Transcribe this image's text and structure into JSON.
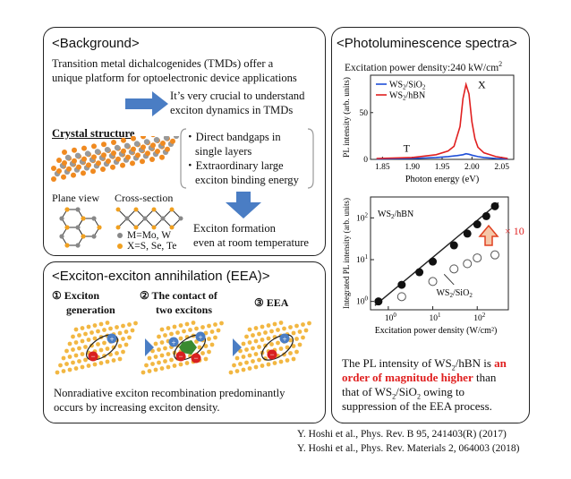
{
  "background": {
    "title": "<Background>",
    "intro_line1": "Transition metal dichalcogenides (TMDs) offer a",
    "intro_line2": "unique platform for optoelectronic device applications",
    "crucial_line1": "It’s very crucial to understand",
    "crucial_line2": "exciton dynamics in TMDs",
    "crystal_label": "Crystal structure",
    "bullet1_line1": "・Direct bandgaps in",
    "bullet1_line2": "single layers",
    "bullet2_line1": "・Extraordinary large",
    "bullet2_line2": "exciton binding energy",
    "plane_view": "Plane view",
    "cross_section": "Cross-section",
    "legend_m": "M=Mo, W",
    "legend_x": "X=S, Se, Te",
    "formation_line1": "Exciton formation",
    "formation_line2": "even at room temperature"
  },
  "eea": {
    "title": "<Exciton-exciton annihilation (EEA)>",
    "step1_line1": "① Exciton",
    "step1_line2": "generation",
    "step2_line1": "② The contact of",
    "step2_line2": "two excitons",
    "step3": "③ EEA",
    "desc_line1": "Nonradiative exciton recombination predominantly",
    "desc_line2": "occurs by increasing exciton density."
  },
  "pl": {
    "title": "<Photoluminescence spectra>",
    "excitation": "Excitation power density:240 kW/cm",
    "excitation_sup": "2",
    "conclusion_line1a": "The PL intensity of WS",
    "conclusion_line1b": "2",
    "conclusion_line1c": "/hBN is ",
    "conclusion_line1d": "an",
    "conclusion_line2": "order of magnitude higher",
    "conclusion_line2b": " than",
    "conclusion_line3a": "that of WS",
    "conclusion_line3b": "2",
    "conclusion_line3c": "/SiO",
    "conclusion_line3d": "2",
    "conclusion_line3e": " owing to",
    "conclusion_line4": "suppression of the EEA process."
  },
  "references": {
    "ref1": "Y. Hoshi et al., Phys. Rev. B 95, 241403(R) (2017)",
    "ref2": "Y. Hoshi et al., Phys. Rev. Materials 2, 064003 (2018)"
  },
  "chart_data": [
    {
      "type": "line",
      "xlabel": "Photon energy (eV)",
      "ylabel": "PL intensity (arb. units)",
      "xlim": [
        1.83,
        2.07
      ],
      "ylim": [
        0,
        90
      ],
      "xticks": [
        "1.85",
        "1.90",
        "1.95",
        "2.00",
        "2.05"
      ],
      "yticks": [
        "0",
        "50"
      ],
      "annotations": [
        "X",
        "T"
      ],
      "series": [
        {
          "name": "WS2/SiO2",
          "color": "#1f4fd8",
          "x": [
            1.84,
            1.9,
            1.94,
            1.96,
            1.975,
            1.985,
            1.99,
            1.995,
            2.0,
            2.01,
            2.02,
            2.04,
            2.06
          ],
          "values": [
            0.5,
            1,
            2,
            3,
            4,
            5,
            6,
            5.5,
            4.5,
            3,
            2,
            1,
            0.5
          ]
        },
        {
          "name": "WS2/hBN",
          "color": "#e02020",
          "x": [
            1.84,
            1.9,
            1.94,
            1.96,
            1.97,
            1.98,
            1.985,
            1.99,
            1.995,
            2.0,
            2.005,
            2.01,
            2.02,
            2.04,
            2.06
          ],
          "values": [
            1,
            2,
            5,
            9,
            14,
            35,
            65,
            80,
            70,
            40,
            22,
            13,
            7,
            3,
            1
          ]
        }
      ]
    },
    {
      "type": "scatter",
      "xlabel": "Excitation power density (W/cm²)",
      "ylabel": "Integrated PL intensity (arb. units)",
      "log_x": true,
      "log_y": true,
      "xticks": [
        "10^0",
        "10^1",
        "10^2"
      ],
      "yticks": [
        "10^0",
        "10^1",
        "10^2"
      ],
      "annotation": "× 10",
      "series": [
        {
          "name": "WS2/hBN",
          "marker": "filled",
          "x": [
            0.6,
            2,
            5,
            10,
            30,
            60,
            100,
            160,
            250
          ],
          "values": [
            1,
            2.5,
            5,
            9,
            22,
            42,
            70,
            110,
            190
          ]
        },
        {
          "name": "WS2/SiO2",
          "marker": "open",
          "x": [
            2,
            10,
            30,
            60,
            100,
            250
          ],
          "values": [
            1.3,
            3,
            6,
            8,
            11,
            13
          ]
        }
      ]
    }
  ]
}
